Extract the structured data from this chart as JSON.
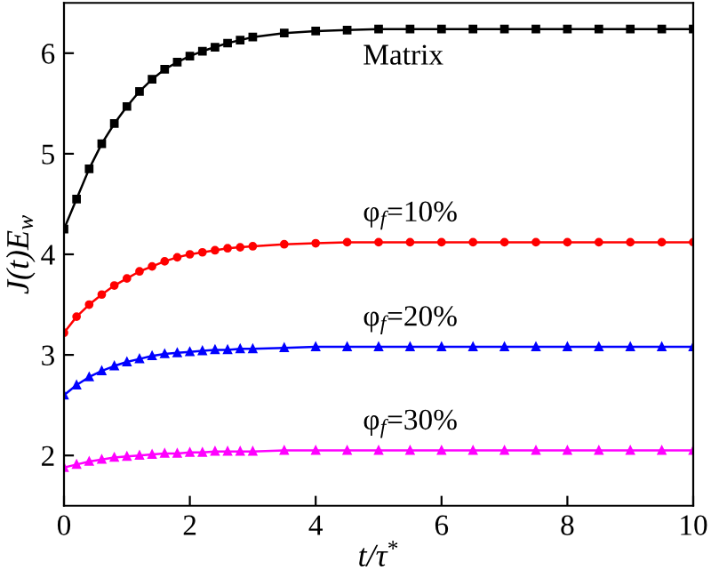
{
  "chart_data": {
    "type": "line",
    "xlabel": "t/τ$^{*}$",
    "ylabel": "J(t)E$_{w}$",
    "x": [
      0,
      0.2,
      0.4,
      0.6,
      0.8,
      1.0,
      1.2,
      1.4,
      1.6,
      1.8,
      2.0,
      2.2,
      2.4,
      2.6,
      2.8,
      3.0,
      3.5,
      4.0,
      4.5,
      5.0,
      5.5,
      6.0,
      6.5,
      7.0,
      7.5,
      8.0,
      8.5,
      9.0,
      9.5,
      10.0
    ],
    "series": [
      {
        "name": "Matrix",
        "color": "#000000",
        "marker": "square",
        "values": [
          4.25,
          4.55,
          4.85,
          5.1,
          5.3,
          5.47,
          5.62,
          5.74,
          5.84,
          5.91,
          5.97,
          6.02,
          6.06,
          6.1,
          6.13,
          6.16,
          6.2,
          6.22,
          6.23,
          6.24,
          6.24,
          6.24,
          6.24,
          6.24,
          6.24,
          6.24,
          6.24,
          6.24,
          6.24,
          6.24
        ]
      },
      {
        "name": "φ$_{f}$=10%",
        "color": "#ff0000",
        "marker": "circle",
        "values": [
          3.22,
          3.38,
          3.5,
          3.6,
          3.69,
          3.76,
          3.83,
          3.88,
          3.93,
          3.97,
          4.0,
          4.02,
          4.04,
          4.06,
          4.07,
          4.08,
          4.1,
          4.11,
          4.12,
          4.12,
          4.12,
          4.12,
          4.12,
          4.12,
          4.12,
          4.12,
          4.12,
          4.12,
          4.12,
          4.12
        ]
      },
      {
        "name": "φ$_{f}$=20%",
        "color": "#0000ff",
        "marker": "triangle",
        "values": [
          2.6,
          2.7,
          2.78,
          2.84,
          2.89,
          2.93,
          2.96,
          2.99,
          3.01,
          3.02,
          3.03,
          3.04,
          3.05,
          3.05,
          3.06,
          3.06,
          3.07,
          3.08,
          3.08,
          3.08,
          3.08,
          3.08,
          3.08,
          3.08,
          3.08,
          3.08,
          3.08,
          3.08,
          3.08,
          3.08
        ]
      },
      {
        "name": "φ$_{f}$=30%",
        "color": "#ff00ff",
        "marker": "triangle",
        "values": [
          1.88,
          1.91,
          1.94,
          1.96,
          1.98,
          1.99,
          2.0,
          2.01,
          2.02,
          2.02,
          2.03,
          2.03,
          2.04,
          2.04,
          2.04,
          2.04,
          2.05,
          2.05,
          2.05,
          2.05,
          2.05,
          2.05,
          2.05,
          2.05,
          2.05,
          2.05,
          2.05,
          2.05,
          2.05,
          2.05
        ]
      }
    ],
    "xlim": [
      0,
      10
    ],
    "xticks": [
      0,
      2,
      4,
      6,
      8,
      10
    ],
    "ylim": [
      1.5,
      6.5
    ],
    "yticks": [
      2,
      3,
      4,
      5,
      6
    ],
    "grid": false,
    "legend": false
  }
}
